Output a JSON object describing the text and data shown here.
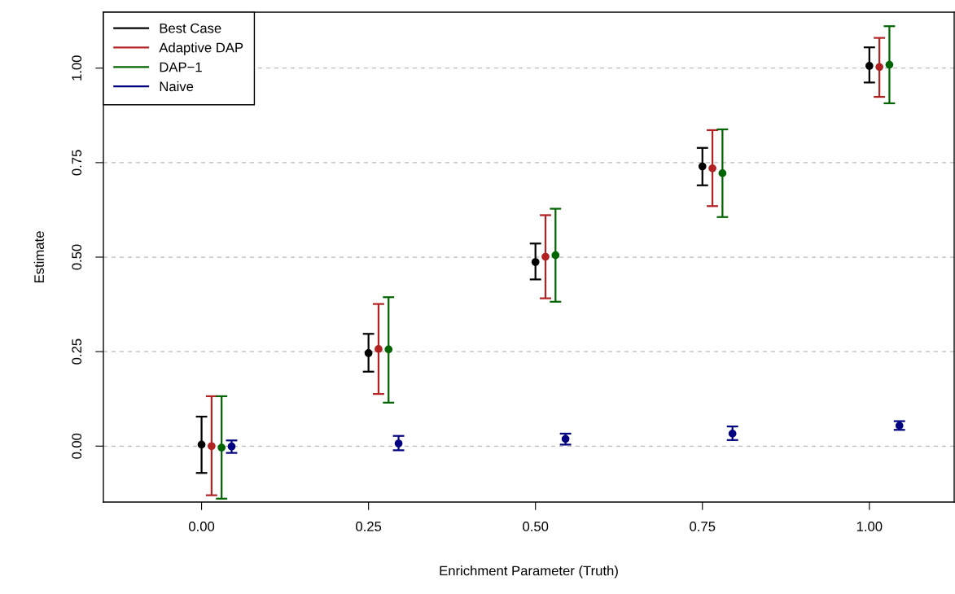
{
  "chart_data": {
    "type": "scatter",
    "xlabel": "Enrichment Parameter (Truth)",
    "ylabel": "Estimate",
    "xlim": [
      -0.147,
      1.127
    ],
    "ylim": [
      -0.148,
      1.148
    ],
    "xticks": [
      {
        "value": 0,
        "label": "0.00"
      },
      {
        "value": 0.25,
        "label": "0.25"
      },
      {
        "value": 0.5,
        "label": "0.50"
      },
      {
        "value": 0.75,
        "label": "0.75"
      },
      {
        "value": 1,
        "label": "1.00"
      }
    ],
    "yticks": [
      {
        "value": 0,
        "label": "0.00"
      },
      {
        "value": 0.25,
        "label": "0.25"
      },
      {
        "value": 0.5,
        "label": "0.50"
      },
      {
        "value": 0.75,
        "label": "0.75"
      },
      {
        "value": 1,
        "label": "1.00"
      }
    ],
    "grid": "y",
    "legend": "top left",
    "marker": "circle",
    "series": [
      {
        "name": "Best Case",
        "color": "#000000",
        "x": [
          0,
          0.25,
          0.5,
          0.75,
          1
        ],
        "values": [
          0.004,
          0.246,
          0.487,
          0.74,
          1.006
        ],
        "errors": [
          [
            -0.071,
            0.078
          ],
          [
            0.197,
            0.297
          ],
          [
            0.441,
            0.536
          ],
          [
            0.69,
            0.789
          ],
          [
            0.962,
            1.055
          ]
        ]
      },
      {
        "name": "Adaptive DAP",
        "color": "#b22222",
        "x": [
          0.015,
          0.265,
          0.515,
          0.765,
          1.015
        ],
        "values": [
          0.0,
          0.257,
          0.501,
          0.735,
          1.003
        ],
        "errors": [
          [
            -0.13,
            0.132
          ],
          [
            0.138,
            0.376
          ],
          [
            0.391,
            0.611
          ],
          [
            0.635,
            0.836
          ],
          [
            0.924,
            1.08
          ]
        ]
      },
      {
        "name": "DAP−1",
        "color": "#006400",
        "x": [
          0.03,
          0.28,
          0.53,
          0.78,
          1.03
        ],
        "values": [
          -0.004,
          0.256,
          0.505,
          0.722,
          1.009
        ],
        "errors": [
          [
            -0.139,
            0.132
          ],
          [
            0.115,
            0.394
          ],
          [
            0.382,
            0.628
          ],
          [
            0.606,
            0.838
          ],
          [
            0.907,
            1.111
          ]
        ]
      },
      {
        "name": "Naive",
        "color": "#000080",
        "x": [
          0.045,
          0.295,
          0.545,
          0.795,
          1.045
        ],
        "values": [
          -0.001,
          0.007,
          0.019,
          0.033,
          0.054
        ],
        "errors": [
          [
            -0.018,
            0.015
          ],
          [
            -0.011,
            0.027
          ],
          [
            0.004,
            0.033
          ],
          [
            0.016,
            0.052
          ],
          [
            0.043,
            0.066
          ]
        ]
      }
    ]
  }
}
